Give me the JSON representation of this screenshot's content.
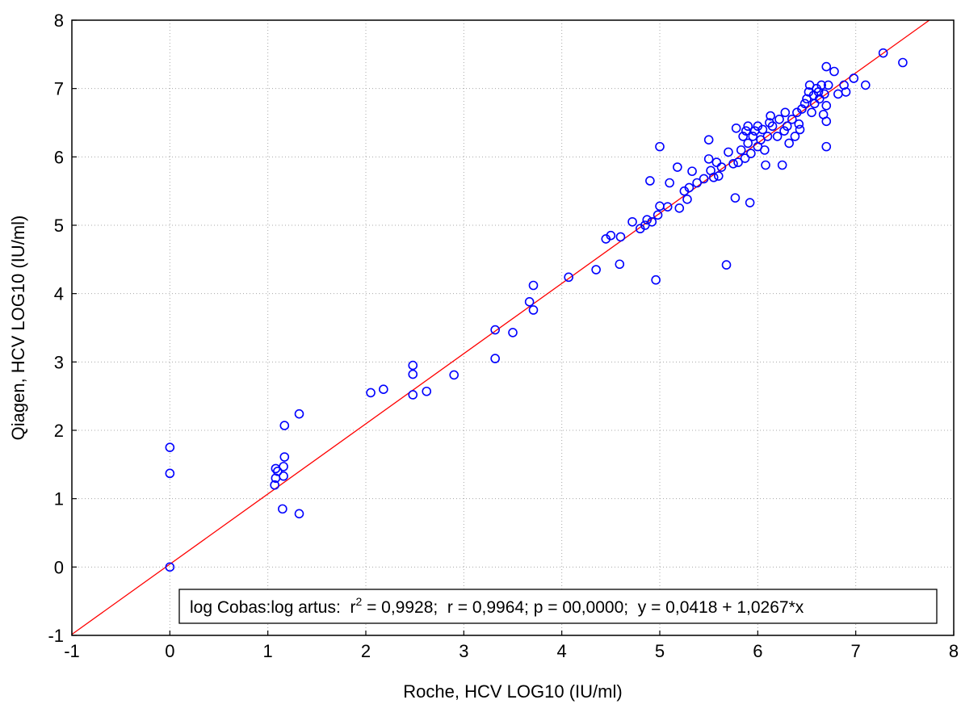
{
  "chart_data": {
    "type": "scatter",
    "xlabel": "Roche, HCV LOG10 (IU/ml)",
    "ylabel": "Qiagen, HCV LOG10  (IU/ml)",
    "xlim": [
      -1,
      8
    ],
    "ylim": [
      -1,
      8
    ],
    "xticks": [
      "-1",
      "0",
      "1",
      "2",
      "3",
      "4",
      "5",
      "6",
      "7",
      "8"
    ],
    "yticks": [
      "-1",
      "0",
      "1",
      "2",
      "3",
      "4",
      "5",
      "6",
      "7",
      "8"
    ],
    "grid": true,
    "marker_color": "#0000ff",
    "line_color": "#ff0000",
    "regression": {
      "intercept": 0.0418,
      "slope": 1.0267,
      "label_prefix": "log Cobas:log artus:  r",
      "label_sup": "2",
      "label_suffix": " = 0,9928;  r = 0,9964; p = 00,0000;  y = 0,0418 + 1,0267*x"
    },
    "points": [
      [
        0.0,
        0.0
      ],
      [
        0.0,
        1.37
      ],
      [
        0.0,
        1.75
      ],
      [
        1.07,
        1.2
      ],
      [
        1.08,
        1.3
      ],
      [
        1.08,
        1.44
      ],
      [
        1.1,
        1.4
      ],
      [
        1.15,
        0.85
      ],
      [
        1.16,
        1.33
      ],
      [
        1.16,
        1.47
      ],
      [
        1.17,
        1.61
      ],
      [
        1.17,
        2.07
      ],
      [
        1.32,
        0.78
      ],
      [
        1.32,
        2.24
      ],
      [
        2.05,
        2.55
      ],
      [
        2.18,
        2.6
      ],
      [
        2.48,
        2.52
      ],
      [
        2.48,
        2.82
      ],
      [
        2.48,
        2.95
      ],
      [
        2.62,
        2.57
      ],
      [
        2.9,
        2.81
      ],
      [
        3.32,
        3.05
      ],
      [
        3.32,
        3.47
      ],
      [
        3.5,
        3.43
      ],
      [
        3.67,
        3.88
      ],
      [
        3.71,
        3.76
      ],
      [
        3.71,
        4.12
      ],
      [
        4.07,
        4.24
      ],
      [
        4.35,
        4.35
      ],
      [
        4.45,
        4.8
      ],
      [
        4.5,
        4.85
      ],
      [
        4.59,
        4.43
      ],
      [
        4.6,
        4.83
      ],
      [
        4.72,
        5.05
      ],
      [
        4.8,
        4.95
      ],
      [
        4.85,
        5.0
      ],
      [
        4.87,
        5.08
      ],
      [
        4.9,
        5.65
      ],
      [
        4.92,
        5.05
      ],
      [
        4.96,
        4.2
      ],
      [
        4.98,
        5.15
      ],
      [
        5.0,
        6.15
      ],
      [
        5.0,
        5.28
      ],
      [
        5.08,
        5.27
      ],
      [
        5.1,
        5.62
      ],
      [
        5.18,
        5.85
      ],
      [
        5.2,
        5.25
      ],
      [
        5.25,
        5.5
      ],
      [
        5.28,
        5.38
      ],
      [
        5.3,
        5.55
      ],
      [
        5.33,
        5.79
      ],
      [
        5.38,
        5.62
      ],
      [
        5.45,
        5.68
      ],
      [
        5.5,
        6.25
      ],
      [
        5.5,
        5.97
      ],
      [
        5.52,
        5.8
      ],
      [
        5.55,
        5.7
      ],
      [
        5.58,
        5.92
      ],
      [
        5.6,
        5.72
      ],
      [
        5.63,
        5.85
      ],
      [
        5.68,
        4.42
      ],
      [
        5.7,
        6.07
      ],
      [
        5.75,
        5.9
      ],
      [
        5.77,
        5.4
      ],
      [
        5.78,
        6.42
      ],
      [
        5.8,
        5.92
      ],
      [
        5.83,
        6.1
      ],
      [
        5.85,
        6.3
      ],
      [
        5.87,
        5.98
      ],
      [
        5.88,
        6.38
      ],
      [
        5.9,
        6.2
      ],
      [
        5.9,
        6.45
      ],
      [
        5.92,
        5.33
      ],
      [
        5.93,
        6.05
      ],
      [
        5.95,
        6.3
      ],
      [
        5.97,
        6.38
      ],
      [
        6.0,
        6.15
      ],
      [
        6.0,
        6.45
      ],
      [
        6.03,
        6.25
      ],
      [
        6.05,
        6.4
      ],
      [
        6.07,
        6.1
      ],
      [
        6.08,
        5.88
      ],
      [
        6.1,
        6.3
      ],
      [
        6.12,
        6.5
      ],
      [
        6.13,
        6.6
      ],
      [
        6.15,
        6.45
      ],
      [
        6.2,
        6.3
      ],
      [
        6.22,
        6.55
      ],
      [
        6.25,
        5.88
      ],
      [
        6.27,
        6.38
      ],
      [
        6.28,
        6.65
      ],
      [
        6.3,
        6.45
      ],
      [
        6.32,
        6.2
      ],
      [
        6.35,
        6.55
      ],
      [
        6.38,
        6.3
      ],
      [
        6.4,
        6.65
      ],
      [
        6.42,
        6.48
      ],
      [
        6.43,
        6.4
      ],
      [
        6.45,
        6.7
      ],
      [
        6.48,
        6.78
      ],
      [
        6.5,
        6.85
      ],
      [
        6.52,
        6.95
      ],
      [
        6.53,
        7.05
      ],
      [
        6.55,
        6.65
      ],
      [
        6.57,
        6.9
      ],
      [
        6.58,
        6.78
      ],
      [
        6.6,
        7.0
      ],
      [
        6.62,
        6.95
      ],
      [
        6.63,
        6.85
      ],
      [
        6.65,
        7.05
      ],
      [
        6.67,
        6.62
      ],
      [
        6.68,
        6.92
      ],
      [
        6.7,
        6.75
      ],
      [
        6.7,
        6.52
      ],
      [
        6.7,
        6.15
      ],
      [
        6.7,
        7.32
      ],
      [
        6.72,
        7.05
      ],
      [
        6.78,
        7.25
      ],
      [
        6.82,
        6.92
      ],
      [
        6.88,
        7.05
      ],
      [
        6.9,
        6.95
      ],
      [
        6.98,
        7.15
      ],
      [
        7.1,
        7.05
      ],
      [
        7.28,
        7.52
      ],
      [
        7.48,
        7.38
      ]
    ]
  }
}
